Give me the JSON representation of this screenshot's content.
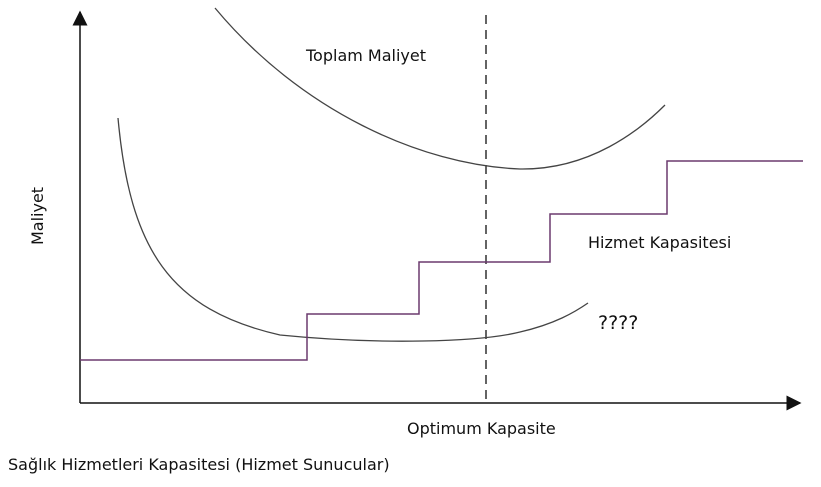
{
  "labels": {
    "total_cost": "Toplam Maliyet",
    "service_capacity": "Hizmet Kapasitesi",
    "unknown_curve": "????",
    "y_axis": "Maliyet",
    "optimum": "Optimum Kapasite",
    "x_axis": "Sağlık Hizmetleri Kapasitesi (Hizmet Sunucular)"
  },
  "colors": {
    "step_line": "#6b3a6e",
    "curves": "#444444",
    "axes": "#111111"
  }
}
